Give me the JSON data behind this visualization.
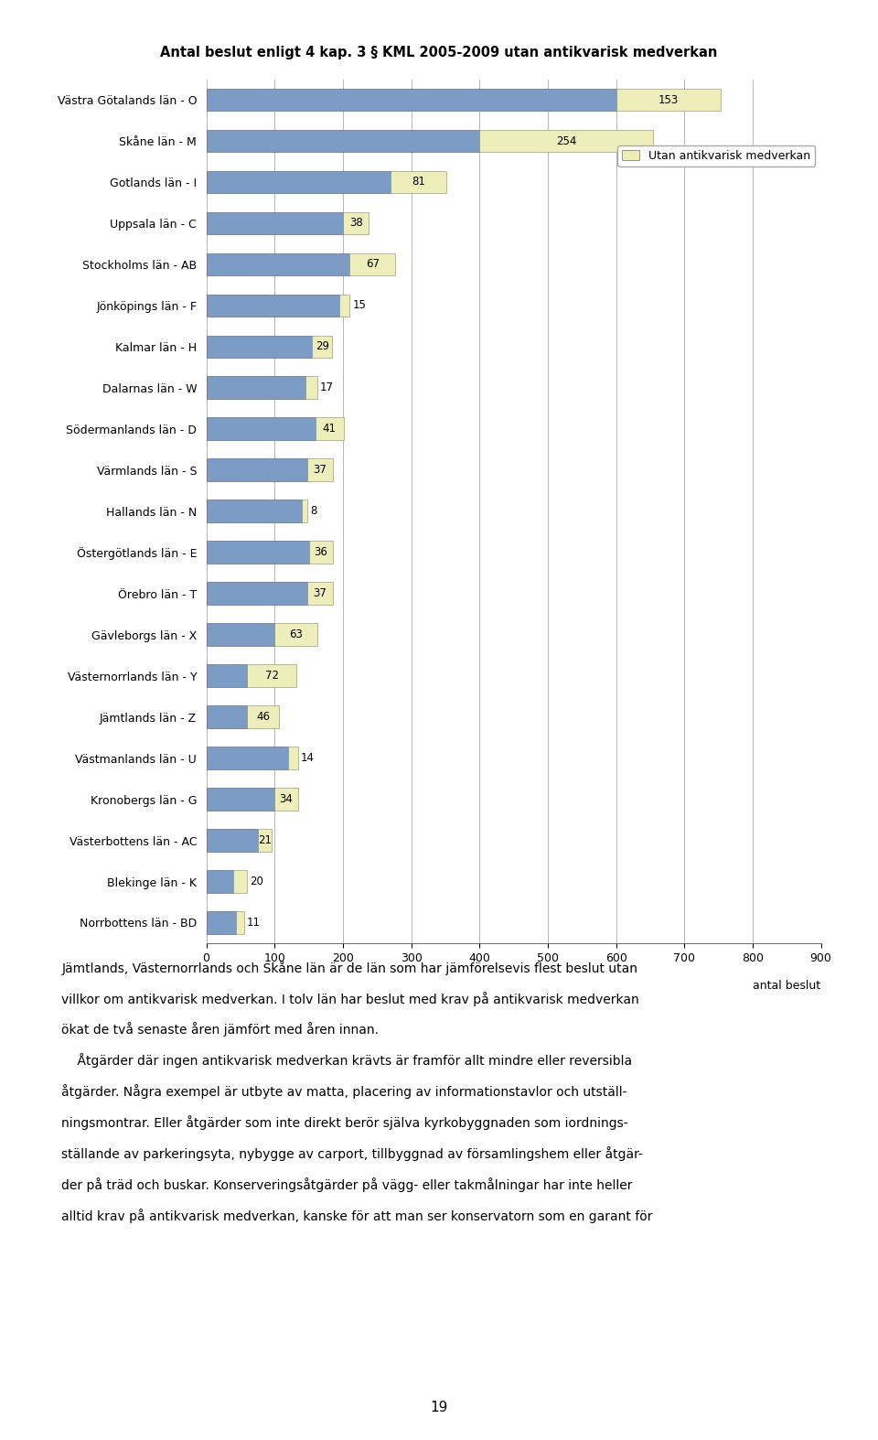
{
  "title": "Antal beslut enligt 4 kap. 3 § KML 2005-2009 utan antikvarisk medverkan",
  "categories": [
    "Västra Götalands län - O",
    "Skåne län - M",
    "Gotlands län - I",
    "Uppsala län - C",
    "Stockholms län - AB",
    "Jönköpings län - F",
    "Kalmar län - H",
    "Dalarnas län - W",
    "Södermanlands län - D",
    "Värmlands län - S",
    "Hallands län - N",
    "Östergötlands län - E",
    "Örebro län - T",
    "Gävleborgs län - X",
    "Västernorrlands län - Y",
    "Jämtlands län - Z",
    "Västmanlands län - U",
    "Kronobergs län - G",
    "Västerbottens län - AC",
    "Blekinge län - K",
    "Norrbottens län - BD"
  ],
  "blue_parts": [
    600,
    400,
    270,
    200,
    210,
    195,
    155,
    145,
    160,
    148,
    140,
    150,
    148,
    100,
    60,
    60,
    120,
    100,
    75,
    40,
    44
  ],
  "yellow_parts": [
    153,
    254,
    81,
    38,
    67,
    15,
    29,
    17,
    41,
    37,
    8,
    36,
    37,
    63,
    72,
    46,
    14,
    34,
    21,
    20,
    11
  ],
  "label_inside": [
    true,
    true,
    true,
    true,
    true,
    false,
    true,
    false,
    true,
    true,
    false,
    true,
    true,
    true,
    true,
    true,
    false,
    true,
    true,
    false,
    false
  ],
  "blue_color": "#7b9cc4",
  "yellow_color": "#eeeebb",
  "xlim_max": 900,
  "xticks": [
    0,
    100,
    200,
    300,
    400,
    500,
    600,
    700,
    800,
    900
  ],
  "xlabel": "antal beslut",
  "legend_label": "Utan antikvarisk medverkan",
  "bar_height": 0.55,
  "text_lines": [
    "Jämtlands, Västernorrlands och Skåne län är de län som har jämförelsevis flest beslut utan",
    "villkor om antikvarisk medverkan. I tolv län har beslut med krav på antikvarisk medverkan",
    "ökat de två senaste åren jämfört med åren innan.",
    "    Åtgärder där ingen antikvarisk medverkan krävts är framför allt mindre eller reversibla",
    "åtgärder. Några exempel är utbyte av matta, placering av informationstavlor och utställ-",
    "ningsmontrar. Eller åtgärder som inte direkt berör själva kyrkobyggnaden som iordnings-",
    "ställande av parkeringsyta, nybygge av carport, tillbyggnad av församlingshem eller åtgär-",
    "der på träd och buskar. Konserveringsåtgärder på vägg- eller takmålningar har inte heller",
    "alltid krav på antikvarisk medverkan, kanske för att man ser konservatorn som en garant för"
  ],
  "page_number": "19"
}
